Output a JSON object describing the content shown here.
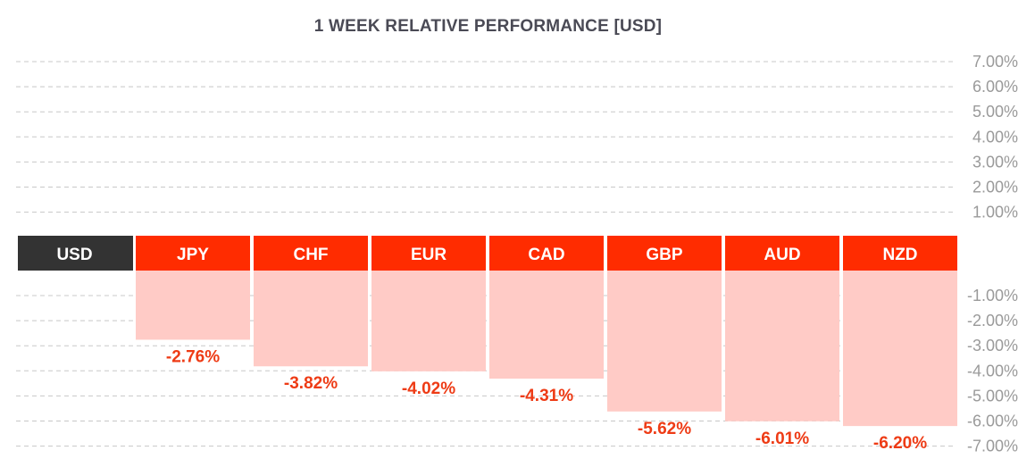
{
  "chart_data": {
    "type": "bar",
    "title": "1 WEEK RELATIVE PERFORMANCE  [USD]",
    "base": "USD",
    "categories": [
      "JPY",
      "CHF",
      "EUR",
      "CAD",
      "GBP",
      "AUD",
      "NZD"
    ],
    "values": [
      -2.76,
      -3.82,
      -4.02,
      -4.31,
      -5.62,
      -6.01,
      -6.2
    ],
    "value_labels": [
      "-2.76%",
      "-3.82%",
      "-4.02%",
      "-4.31%",
      "-5.62%",
      "-6.01%",
      "-6.20%"
    ],
    "positive_ticks": [
      "7.00%",
      "6.00%",
      "5.00%",
      "4.00%",
      "3.00%",
      "2.00%",
      "1.00%"
    ],
    "negative_ticks": [
      "-1.00%",
      "-2.00%",
      "-3.00%",
      "-4.00%",
      "-5.00%",
      "-6.00%",
      "-7.00%"
    ],
    "ylim": [
      -7,
      7
    ],
    "grid": true,
    "colors": {
      "base_header": "#333333",
      "header": "#ff2c00",
      "bar": "#ffcbc6",
      "value_text": "#ee3b15",
      "grid": "#c8c8c8",
      "tick_text": "#9a9a9a"
    }
  }
}
